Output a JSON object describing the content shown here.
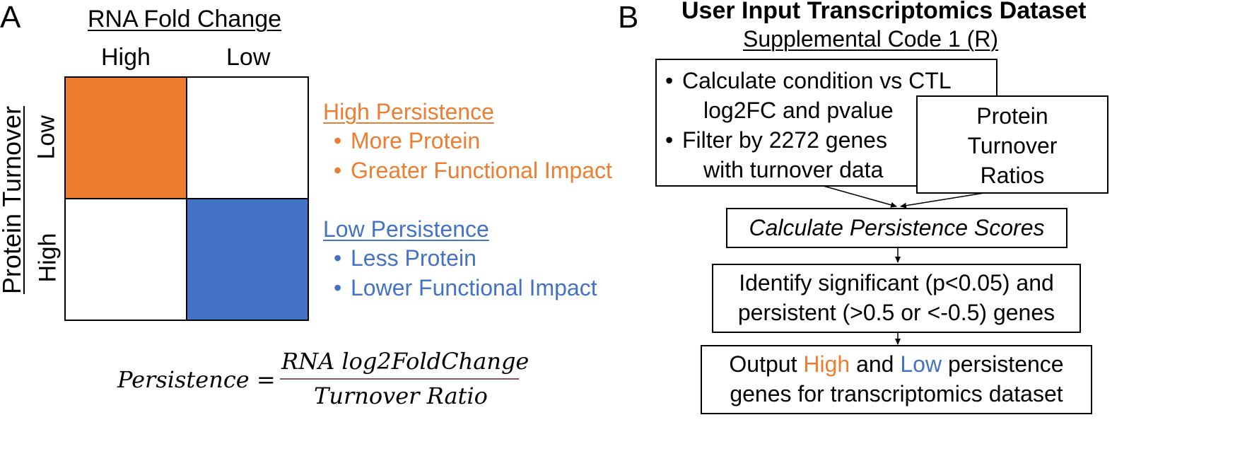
{
  "panelA": {
    "letter": "A",
    "title": "RNA Fold Change",
    "col_labels": [
      "High",
      "Low"
    ],
    "row_labels": [
      "Low",
      "High"
    ],
    "y_axis_label": "Protein Turnover",
    "cell_colors": {
      "high_persistence": "#ED7D31",
      "low_persistence": "#4472C4"
    },
    "legend": {
      "high": {
        "heading": "High Persistence",
        "items": [
          "More Protein",
          "Greater Functional Impact"
        ],
        "color": "#ED7D31"
      },
      "low": {
        "heading": "Low Persistence",
        "items": [
          "Less Protein",
          "Lower Functional Impact"
        ],
        "color": "#4472C4"
      }
    },
    "formula": {
      "lhs": "Persistence =",
      "numerator": "RNA log2FoldChange",
      "denominator": "Turnover Ratio"
    }
  },
  "panelB": {
    "letter": "B",
    "title": "User Input Transcriptomics Dataset",
    "subtitle": "Supplemental Code 1 (R)",
    "box1": {
      "bullet1_line1": "Calculate condition vs CTL",
      "bullet1_line2": "log2FC and pvalue",
      "bullet2_line1": "Filter by 2272 genes",
      "bullet2_line2": "with turnover data"
    },
    "box_turnover": [
      "Protein",
      "Turnover",
      "Ratios"
    ],
    "box_calc": "Calculate Persistence Scores",
    "box_identify": [
      "Identify significant (p<0.05) and",
      "persistent (>0.5 or <-0.5) genes"
    ],
    "box_output": {
      "prefix": "Output",
      "high": "High",
      "and": "and",
      "low": "Low",
      "suffix": "persistence",
      "line2": "genes for transcriptomics dataset"
    }
  }
}
